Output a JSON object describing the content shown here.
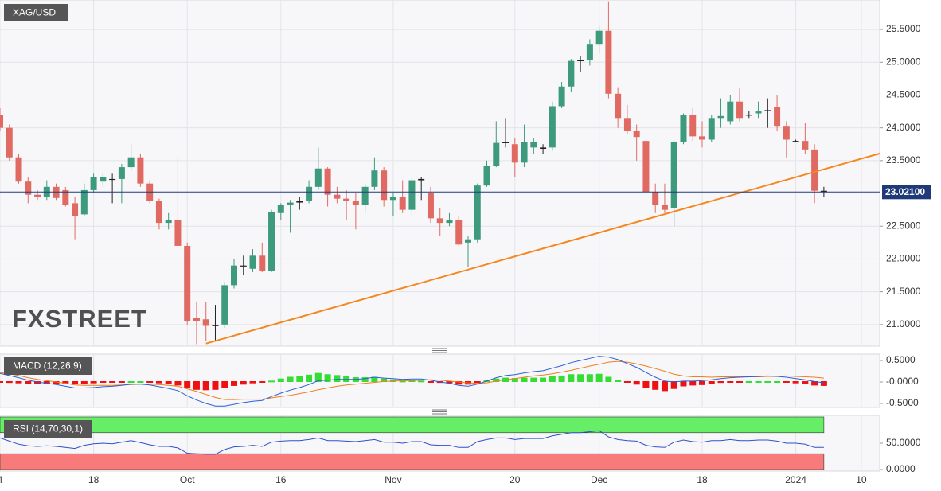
{
  "chart_data": [
    {
      "type": "candlestick",
      "title": "XAG/USD",
      "watermark": "FXSTREET",
      "open": [
        24.2,
        24.0,
        23.55,
        23.18,
        22.98,
        22.95,
        23.1,
        23.05,
        22.85,
        22.68,
        23.05,
        23.18,
        23.22,
        23.22,
        23.4,
        23.55,
        23.15,
        22.88,
        22.55,
        22.6,
        22.2,
        21.1,
        21.08,
        20.98,
        21.0,
        21.6,
        21.9,
        21.85,
        22.05,
        21.82,
        22.7,
        22.82,
        22.86,
        22.88,
        23.1,
        23.38,
        22.98,
        22.92,
        22.88,
        22.82,
        23.1,
        23.35,
        22.9,
        22.95,
        22.75,
        23.2,
        23.0,
        22.62,
        22.55,
        22.6,
        22.25,
        22.3,
        23.12,
        23.42,
        23.77,
        23.75,
        23.47,
        23.7,
        23.68,
        23.7,
        24.33,
        24.63,
        25.02,
        25.03,
        25.28,
        25.48,
        24.52,
        24.15,
        23.95,
        23.8,
        23.02,
        22.83,
        22.78,
        23.78,
        24.2,
        23.87,
        23.82,
        24.15,
        24.1,
        24.4,
        24.2,
        24.22,
        24.27,
        24.32,
        24.03,
        23.8,
        23.8,
        23.67,
        23.04
      ],
      "high": [
        24.3,
        24.05,
        23.6,
        23.25,
        23.05,
        23.2,
        23.15,
        23.1,
        22.95,
        23.15,
        23.3,
        23.3,
        23.3,
        23.45,
        23.75,
        23.6,
        23.2,
        22.92,
        22.7,
        23.58,
        22.25,
        21.35,
        21.35,
        21.3,
        21.65,
        22.0,
        22.05,
        22.15,
        22.25,
        22.75,
        22.85,
        22.9,
        22.95,
        23.2,
        23.7,
        23.4,
        23.1,
        23.05,
        23.0,
        23.15,
        23.55,
        23.4,
        23.0,
        23.2,
        23.25,
        23.25,
        23.1,
        22.78,
        22.7,
        22.65,
        22.35,
        23.15,
        23.5,
        24.1,
        24.15,
        23.85,
        24.05,
        23.85,
        23.75,
        24.4,
        24.7,
        25.05,
        25.1,
        25.35,
        25.55,
        25.93,
        24.62,
        24.35,
        24.05,
        23.82,
        23.15,
        23.15,
        23.8,
        24.22,
        24.3,
        24.1,
        24.2,
        24.45,
        24.5,
        24.6,
        24.25,
        24.4,
        24.45,
        24.5,
        24.1,
        23.82,
        24.08,
        23.75,
        23.1
      ],
      "low": [
        23.95,
        23.5,
        23.15,
        22.85,
        22.9,
        22.9,
        22.9,
        22.8,
        22.3,
        22.65,
        23.0,
        23.1,
        22.85,
        22.85,
        23.35,
        23.1,
        22.85,
        22.45,
        22.45,
        22.15,
        21.0,
        20.7,
        20.75,
        20.75,
        20.95,
        21.55,
        21.75,
        21.8,
        21.8,
        21.8,
        22.6,
        22.4,
        22.75,
        22.85,
        23.05,
        22.8,
        22.85,
        22.6,
        22.45,
        22.7,
        23.05,
        22.8,
        22.65,
        22.7,
        22.65,
        22.9,
        22.55,
        22.35,
        22.5,
        22.2,
        21.88,
        22.25,
        23.1,
        23.4,
        23.7,
        23.25,
        23.4,
        23.6,
        23.6,
        23.65,
        24.3,
        24.55,
        24.85,
        24.95,
        25.15,
        24.45,
        24.0,
        23.9,
        23.5,
        22.98,
        22.7,
        22.7,
        22.5,
        23.75,
        23.8,
        23.7,
        23.78,
        24.0,
        24.05,
        24.1,
        24.15,
        24.15,
        24.0,
        23.95,
        23.55,
        23.78,
        23.6,
        22.85,
        22.95
      ],
      "close": [
        24.0,
        23.55,
        23.18,
        22.98,
        22.95,
        23.1,
        22.93,
        22.82,
        22.65,
        23.05,
        23.25,
        23.25,
        23.21,
        23.4,
        23.55,
        23.15,
        22.88,
        22.55,
        22.6,
        22.2,
        21.05,
        21.05,
        20.98,
        20.99,
        21.6,
        21.9,
        21.9,
        22.05,
        21.82,
        22.72,
        22.82,
        22.86,
        22.88,
        23.1,
        23.38,
        22.98,
        22.92,
        22.88,
        22.82,
        23.1,
        23.35,
        22.9,
        22.95,
        22.75,
        23.2,
        23.22,
        22.62,
        22.55,
        22.6,
        22.22,
        22.3,
        23.12,
        23.42,
        23.77,
        23.78,
        23.47,
        23.78,
        23.78,
        23.7,
        24.33,
        24.63,
        25.02,
        25.03,
        25.28,
        25.48,
        24.52,
        24.15,
        23.95,
        23.86,
        23.02,
        22.83,
        22.75,
        23.78,
        24.2,
        23.87,
        23.82,
        24.15,
        24.18,
        24.4,
        24.15,
        24.2,
        24.25,
        24.27,
        24.03,
        23.82,
        23.8,
        23.67,
        23.04,
        23.02
      ],
      "up_color": "#3d9a7c",
      "down_color": "#e06a62",
      "doji_color": "#222222",
      "ylim": [
        20.67,
        25.95
      ],
      "yticks": [
        {
          "value": 21.0,
          "label": "21.0000"
        },
        {
          "value": 21.5,
          "label": "21.5000"
        },
        {
          "value": 22.0,
          "label": "22.0000"
        },
        {
          "value": 22.5,
          "label": "22.5000"
        },
        {
          "value": 23.5,
          "label": "23.5000"
        },
        {
          "value": 24.0,
          "label": "24.0000"
        },
        {
          "value": 24.5,
          "label": "24.5000"
        },
        {
          "value": 25.0,
          "label": "25.0000"
        },
        {
          "value": 25.5,
          "label": "25.5000"
        }
      ],
      "xticks": [
        {
          "value": 0,
          "label": "4"
        },
        {
          "value": 10,
          "label": "18"
        },
        {
          "value": 20,
          "label": "Oct"
        },
        {
          "value": 30,
          "label": "16"
        },
        {
          "value": 42,
          "label": "Nov"
        },
        {
          "value": 55,
          "label": "20"
        },
        {
          "value": 64,
          "label": "Dec"
        },
        {
          "value": 75,
          "label": "18"
        },
        {
          "value": 85,
          "label": "2024"
        },
        {
          "value": 92,
          "label": "10"
        }
      ],
      "last_price": 23.021,
      "last_price_label": "23.02100",
      "last_price_color": "#1e3a78",
      "trendline": {
        "color": "#f5871f",
        "x": [
          22,
          94
        ],
        "y": [
          20.71,
          23.61
        ]
      },
      "grid": true
    },
    {
      "type": "macd",
      "title": "MACD (12,26,9)",
      "histogram": [
        -0.02,
        -0.04,
        -0.05,
        -0.06,
        -0.06,
        -0.06,
        -0.06,
        -0.07,
        -0.07,
        -0.06,
        -0.05,
        -0.03,
        -0.02,
        -0.01,
        0.01,
        0.0,
        -0.02,
        -0.05,
        -0.07,
        -0.1,
        -0.16,
        -0.2,
        -0.21,
        -0.2,
        -0.15,
        -0.11,
        -0.08,
        -0.05,
        -0.03,
        0.03,
        0.08,
        0.12,
        0.14,
        0.17,
        0.21,
        0.18,
        0.16,
        0.13,
        0.11,
        0.11,
        0.12,
        0.08,
        0.06,
        0.03,
        0.04,
        0.03,
        -0.01,
        -0.04,
        -0.05,
        -0.08,
        -0.08,
        -0.02,
        0.04,
        0.08,
        0.1,
        0.09,
        0.1,
        0.1,
        0.1,
        0.13,
        0.15,
        0.18,
        0.18,
        0.18,
        0.19,
        0.12,
        0.04,
        -0.03,
        -0.08,
        -0.15,
        -0.2,
        -0.23,
        -0.18,
        -0.12,
        -0.1,
        -0.09,
        -0.06,
        -0.04,
        -0.02,
        -0.01,
        0.0,
        0.01,
        0.01,
        0.0,
        -0.03,
        -0.05,
        -0.07,
        -0.1,
        -0.11
      ],
      "macd": [
        0.2,
        0.15,
        0.1,
        0.04,
        0.0,
        -0.03,
        -0.06,
        -0.1,
        -0.14,
        -0.14,
        -0.13,
        -0.11,
        -0.1,
        -0.08,
        -0.05,
        -0.05,
        -0.07,
        -0.11,
        -0.15,
        -0.2,
        -0.32,
        -0.42,
        -0.5,
        -0.56,
        -0.56,
        -0.52,
        -0.48,
        -0.45,
        -0.43,
        -0.34,
        -0.26,
        -0.19,
        -0.13,
        -0.06,
        0.03,
        0.04,
        0.06,
        0.06,
        0.06,
        0.08,
        0.11,
        0.09,
        0.08,
        0.06,
        0.07,
        0.07,
        0.04,
        0.0,
        -0.03,
        -0.08,
        -0.1,
        -0.05,
        0.02,
        0.1,
        0.15,
        0.17,
        0.21,
        0.24,
        0.26,
        0.32,
        0.38,
        0.45,
        0.5,
        0.55,
        0.6,
        0.58,
        0.52,
        0.43,
        0.34,
        0.22,
        0.11,
        0.02,
        0.0,
        0.02,
        0.02,
        0.03,
        0.05,
        0.08,
        0.1,
        0.11,
        0.12,
        0.13,
        0.14,
        0.13,
        0.11,
        0.08,
        0.05,
        0.01,
        -0.02
      ],
      "signal": [
        0.22,
        0.19,
        0.15,
        0.1,
        0.06,
        0.03,
        0.0,
        -0.03,
        -0.07,
        -0.08,
        -0.08,
        -0.08,
        -0.08,
        -0.07,
        -0.06,
        -0.05,
        -0.05,
        -0.06,
        -0.08,
        -0.1,
        -0.16,
        -0.22,
        -0.29,
        -0.36,
        -0.41,
        -0.41,
        -0.4,
        -0.4,
        -0.4,
        -0.37,
        -0.34,
        -0.31,
        -0.27,
        -0.23,
        -0.18,
        -0.14,
        -0.1,
        -0.07,
        -0.05,
        -0.03,
        -0.01,
        0.01,
        0.02,
        0.03,
        0.03,
        0.04,
        0.05,
        0.04,
        0.02,
        0.0,
        -0.02,
        -0.03,
        -0.02,
        0.02,
        0.05,
        0.08,
        0.11,
        0.14,
        0.16,
        0.19,
        0.23,
        0.27,
        0.32,
        0.37,
        0.41,
        0.46,
        0.48,
        0.46,
        0.42,
        0.37,
        0.31,
        0.25,
        0.18,
        0.14,
        0.12,
        0.12,
        0.11,
        0.12,
        0.12,
        0.12,
        0.12,
        0.12,
        0.13,
        0.13,
        0.14,
        0.13,
        0.12,
        0.11,
        0.09
      ],
      "hist_up_color": "#33dd33",
      "hist_down_color": "#ee1111",
      "macd_color": "#2b5fd9",
      "signal_color": "#f07f1a",
      "ylim": [
        -0.593,
        0.648
      ],
      "yticks": [
        {
          "value": -0.5,
          "label": "-0.5000"
        },
        {
          "value": 0,
          "label": "-0.0000"
        },
        {
          "value": 0.5,
          "label": "0.5000"
        }
      ]
    },
    {
      "type": "rsi",
      "title": "RSI (14,70,30,1)",
      "values": [
        60,
        54,
        48,
        45,
        44,
        45,
        44,
        42,
        40,
        46,
        49,
        50,
        49,
        52,
        55,
        51,
        47,
        44,
        44,
        41,
        31,
        30,
        29,
        29,
        38,
        43,
        44,
        46,
        44,
        52,
        54,
        55,
        55,
        57,
        60,
        55,
        55,
        54,
        53,
        55,
        57,
        52,
        52,
        50,
        53,
        53,
        47,
        46,
        46,
        42,
        42,
        53,
        57,
        60,
        60,
        57,
        59,
        59,
        59,
        64,
        67,
        70,
        70,
        72,
        74,
        62,
        57,
        55,
        54,
        46,
        43,
        42,
        52,
        56,
        53,
        52,
        55,
        55,
        57,
        55,
        55,
        56,
        56,
        54,
        50,
        50,
        48,
        42,
        42
      ],
      "color": "#3050c8",
      "bands": [
        {
          "from": 70,
          "to": 100,
          "color": "#66ee66"
        },
        {
          "from": 0,
          "to": 30,
          "color": "#f77b7b"
        }
      ],
      "ylim": [
        -3,
        103
      ],
      "yticks": [
        {
          "value": 0,
          "label": "0.0000"
        },
        {
          "value": 50,
          "label": "50.0000"
        }
      ]
    }
  ]
}
